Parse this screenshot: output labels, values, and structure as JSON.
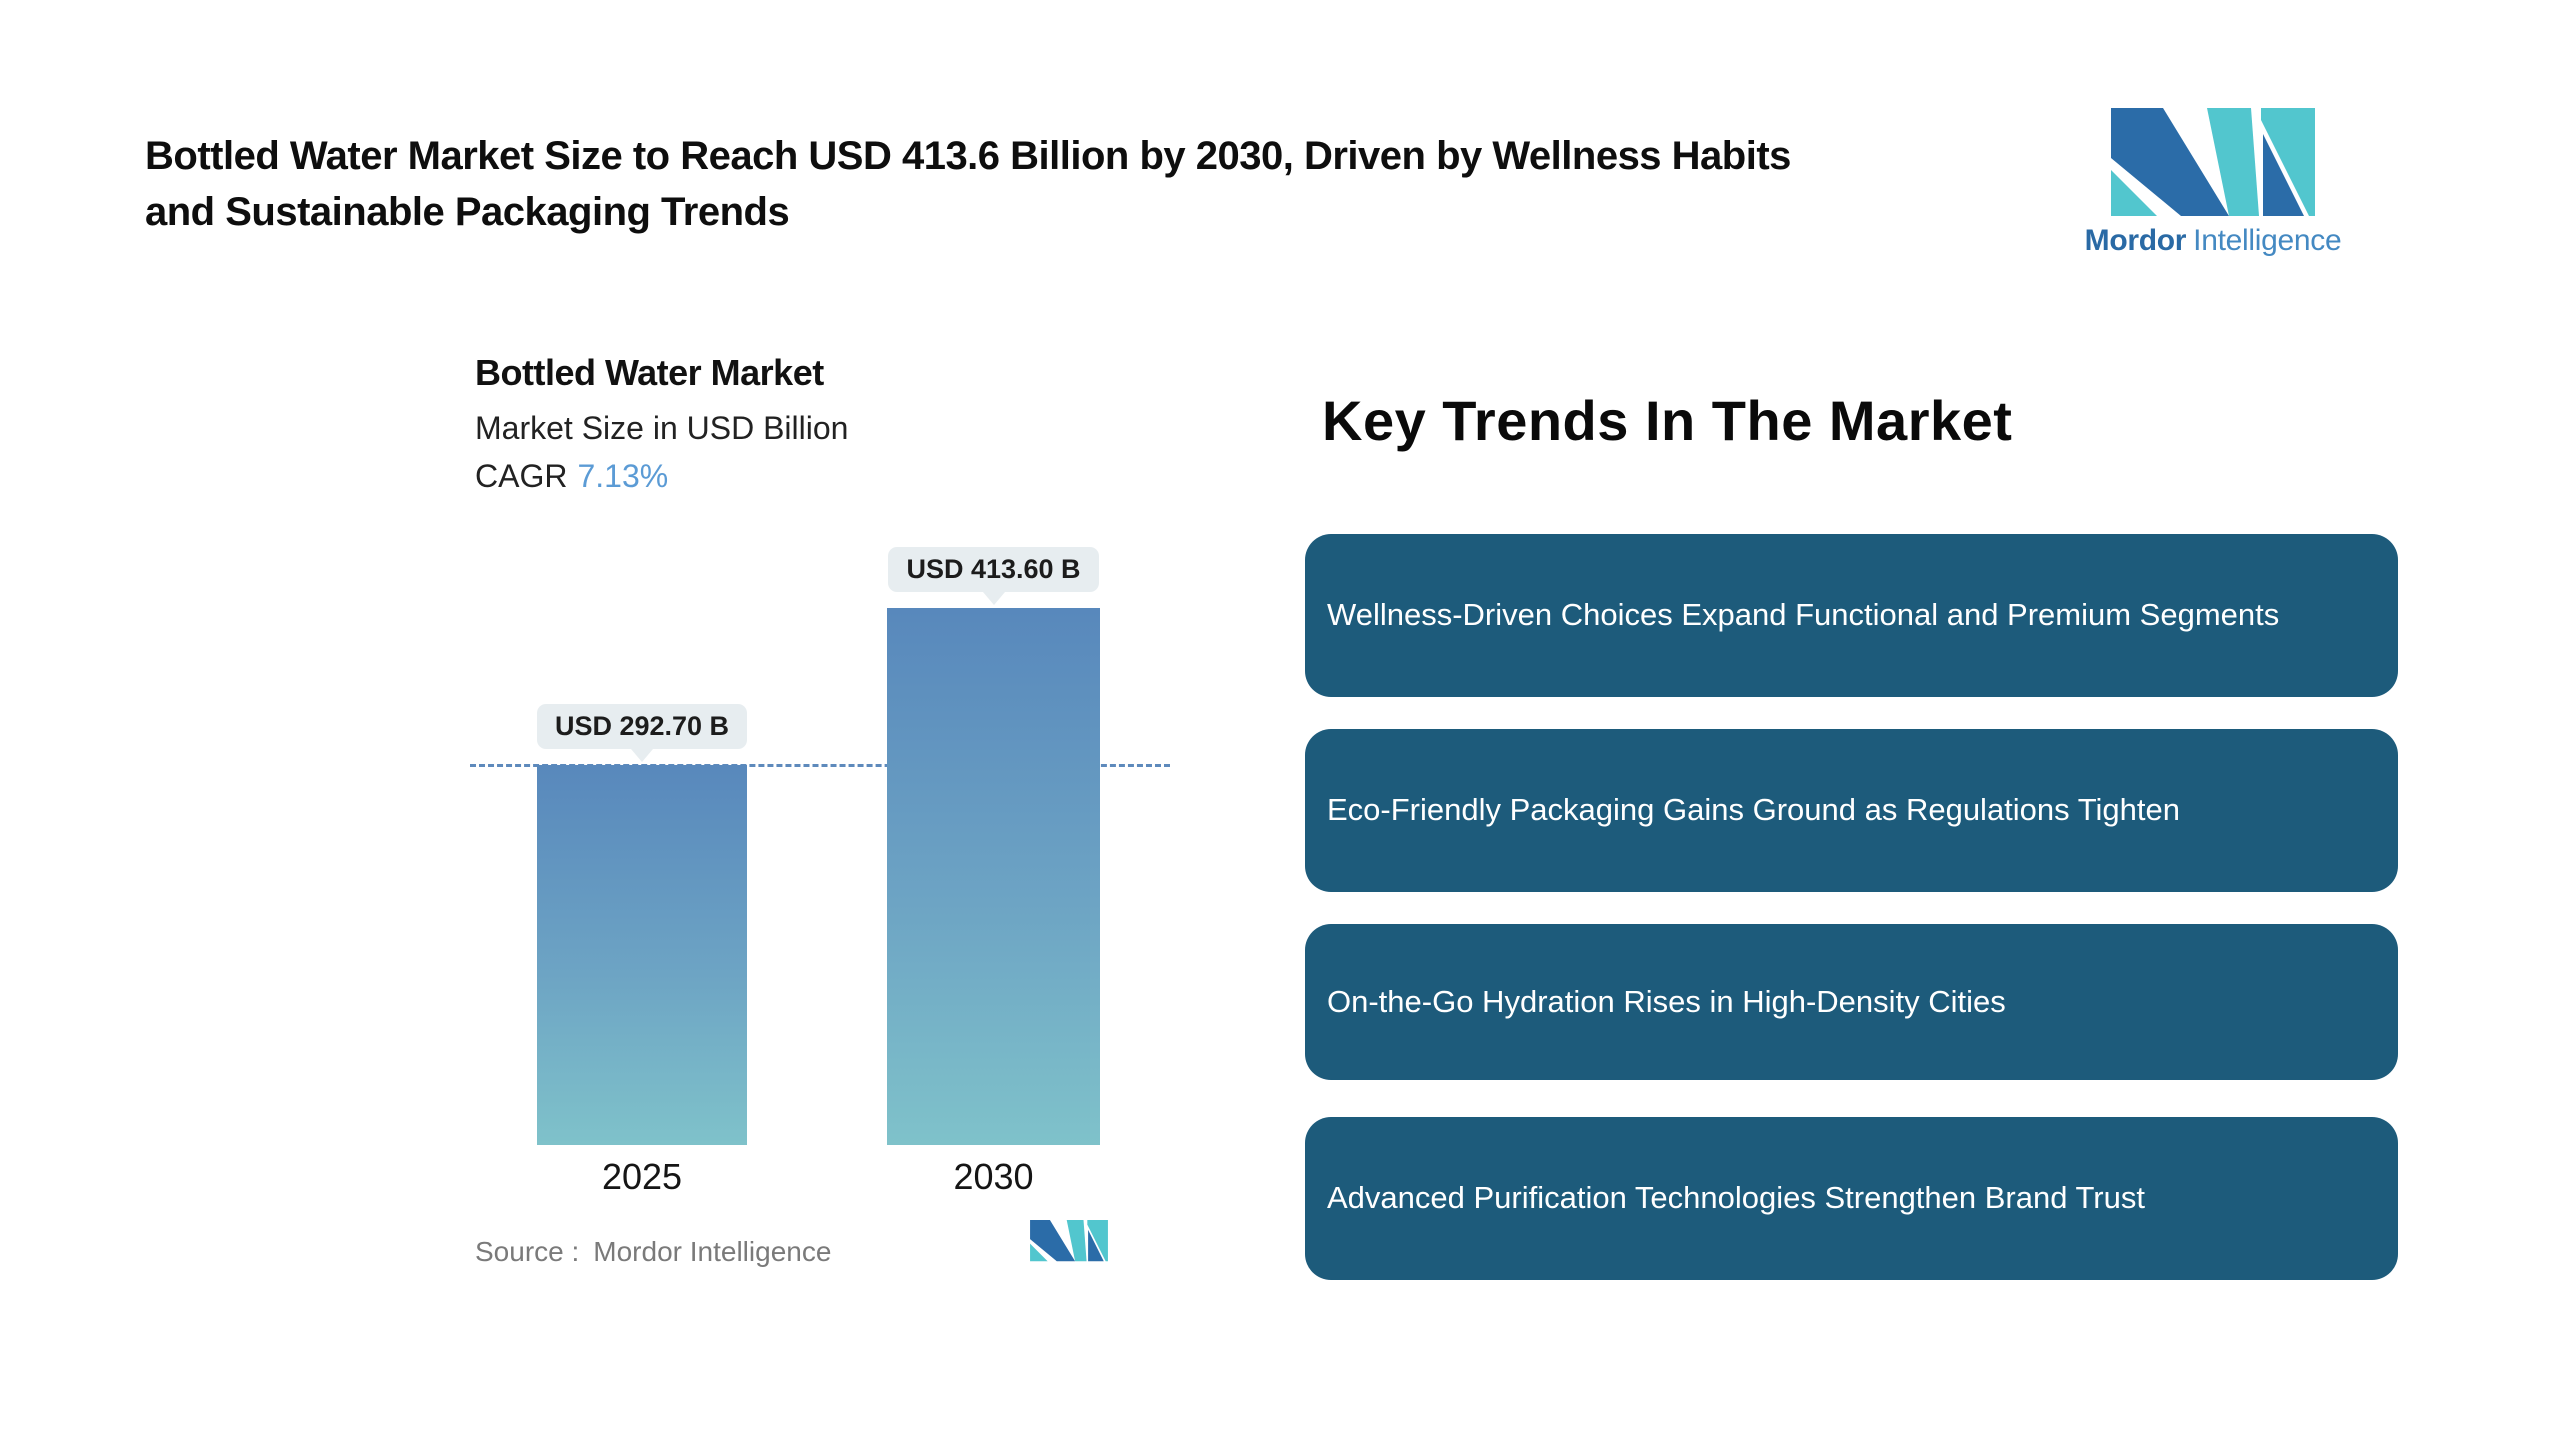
{
  "title_lines": [
    "Bottled Water Market Size to Reach USD 413.6 Billion by 2030, Driven by Wellness Habits",
    "and Sustainable Packaging Trends"
  ],
  "brand": {
    "name_bold": "Mordor",
    "name_light": "Intelligence"
  },
  "chart": {
    "title": "Bottled Water Market",
    "subtitle": "Market Size in USD Billion",
    "cagr_label": "CAGR",
    "cagr_value": "7.13%",
    "source_label": "Source :",
    "source_value": "Mordor Intelligence"
  },
  "chart_data": {
    "type": "bar",
    "title": "Bottled Water Market",
    "ylabel": "Market Size in USD Billion",
    "cagr": "7.13%",
    "categories": [
      "2025",
      "2030"
    ],
    "values": [
      292.7,
      413.6
    ],
    "bar_labels": [
      "USD 292.70 B",
      "USD 413.60 B"
    ],
    "reference_line_value": 292.7,
    "grid": false,
    "legend": false,
    "bar_gradient_top": "#5888bc",
    "bar_gradient_bottom": "#7fc2ca"
  },
  "trends": {
    "heading": "Key Trends In The Market",
    "items": [
      "Wellness-Driven Choices Expand Functional and Premium Segments",
      "Eco-Friendly Packaging Gains Ground as Regulations Tighten",
      "On-the-Go Hydration Rises in High-Density Cities",
      "Advanced Purification Technologies Strengthen Brand Trust"
    ]
  },
  "colors": {
    "brand_blue": "#2b6ca8",
    "brand_teal": "#52c6ce",
    "trend_box": "#1d5b7b",
    "trend_text": "#ffffff",
    "cagr_blue": "#5b9bd5",
    "dashed_line": "#5e8abc",
    "value_pill_bg": "#e7edf0"
  }
}
